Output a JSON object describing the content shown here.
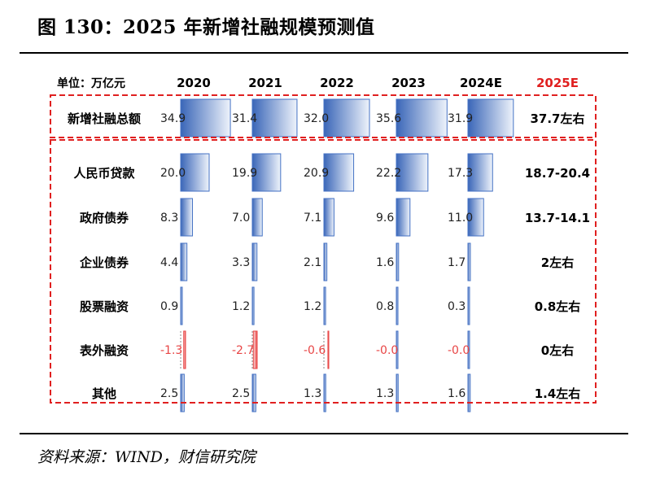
{
  "title": "图 130：2025 年新增社融规模预测值",
  "unit_label": "单位：万亿元",
  "source": "资料来源：WIND，财信研究院",
  "colors": {
    "bar_positive": "#4472c4",
    "bar_negative": "#e84545",
    "forecast_header": "#e02020",
    "frame": "#e02020"
  },
  "chart_data": {
    "type": "table",
    "years": [
      "2020",
      "2021",
      "2022",
      "2023",
      "2024E"
    ],
    "forecast_year": "2025E",
    "rows": [
      {
        "label": "新增社融总额",
        "values": [
          34.9,
          31.4,
          32.0,
          35.6,
          31.9
        ],
        "display": [
          "34.9",
          "31.4",
          "32.0",
          "35.6",
          "31.9"
        ],
        "forecast": "37.7左右"
      },
      {
        "label": "人民币贷款",
        "values": [
          20.0,
          19.9,
          20.9,
          22.2,
          17.3
        ],
        "display": [
          "20.0",
          "19.9",
          "20.9",
          "22.2",
          "17.3"
        ],
        "forecast": "18.7-20.4"
      },
      {
        "label": "政府债券",
        "values": [
          8.3,
          7.0,
          7.1,
          9.6,
          11.0
        ],
        "display": [
          "8.3",
          "7.0",
          "7.1",
          "9.6",
          "11.0"
        ],
        "forecast": "13.7-14.1"
      },
      {
        "label": "企业债券",
        "values": [
          4.4,
          3.3,
          2.1,
          1.6,
          1.7
        ],
        "display": [
          "4.4",
          "3.3",
          "2.1",
          "1.6",
          "1.7"
        ],
        "forecast": "2左右"
      },
      {
        "label": "股票融资",
        "values": [
          0.9,
          1.2,
          1.2,
          0.8,
          0.3
        ],
        "display": [
          "0.9",
          "1.2",
          "1.2",
          "0.8",
          "0.3"
        ],
        "forecast": "0.8左右"
      },
      {
        "label": "表外融资",
        "values": [
          -1.3,
          -2.7,
          -0.6,
          -0.0,
          -0.0
        ],
        "display": [
          "-1.3",
          "-2.7",
          "-0.6",
          "-0.0",
          "-0.0"
        ],
        "forecast": "0左右"
      },
      {
        "label": "其他",
        "values": [
          2.5,
          2.5,
          1.3,
          1.3,
          1.6
        ],
        "display": [
          "2.5",
          "2.5",
          "1.3",
          "1.3",
          "1.6"
        ],
        "forecast": "1.4左右"
      }
    ]
  }
}
